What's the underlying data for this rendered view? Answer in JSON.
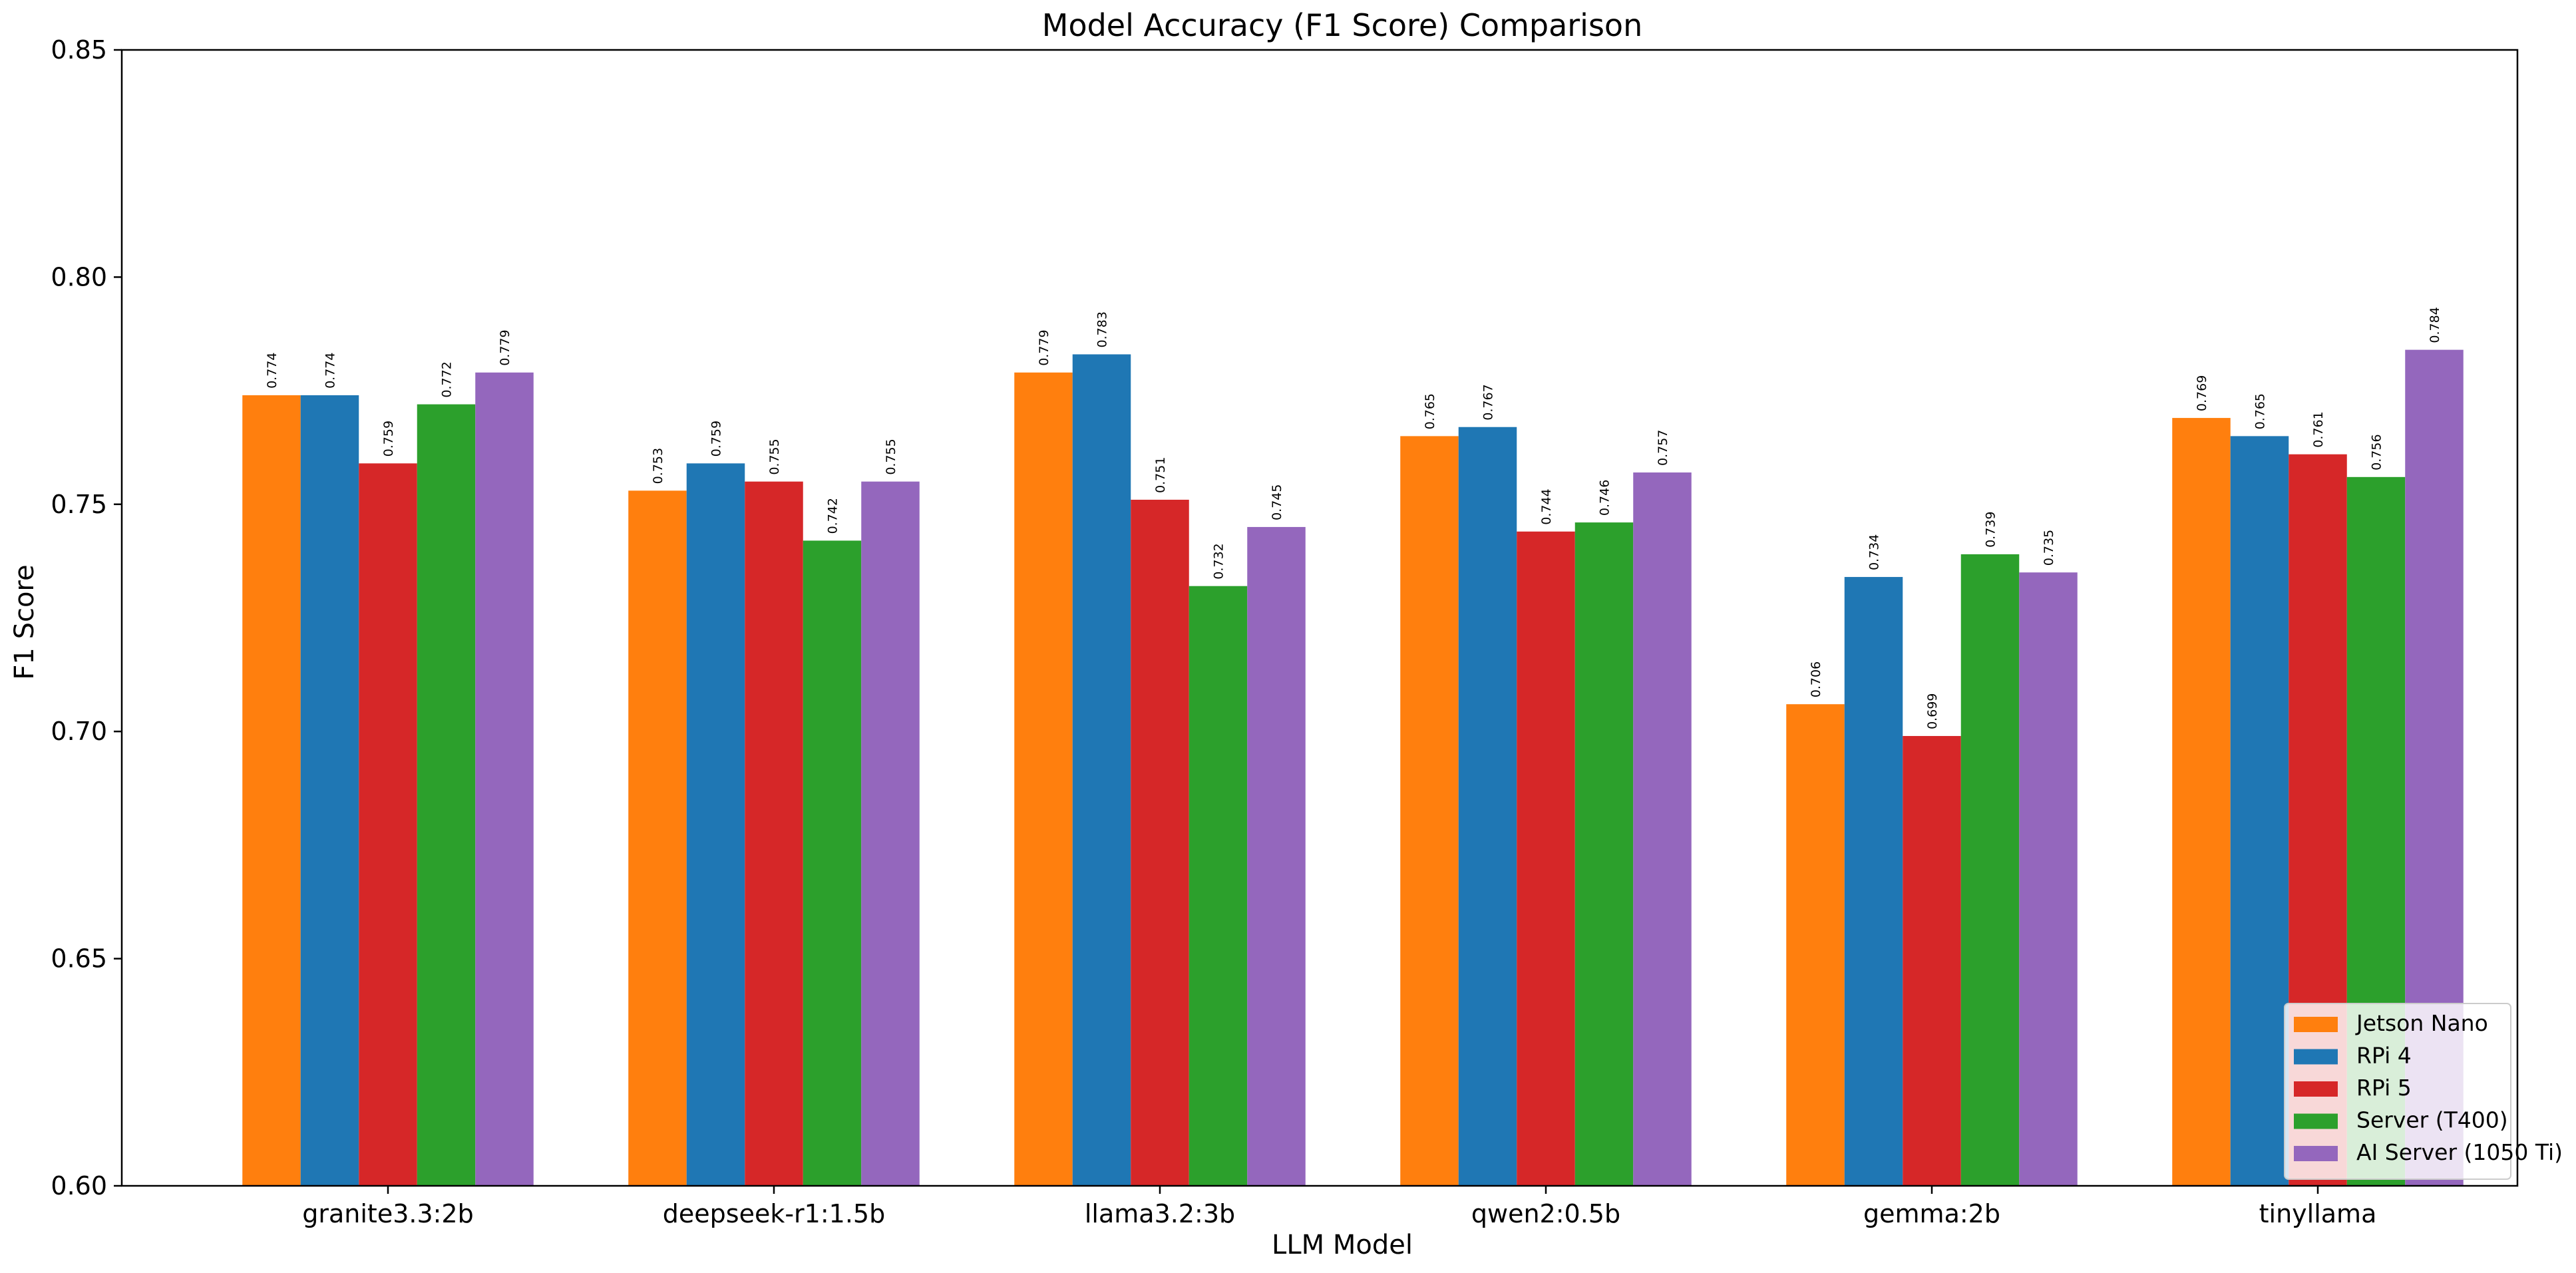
{
  "chart_data": {
    "type": "bar",
    "title": "Model Accuracy (F1 Score) Comparison",
    "xlabel": "LLM Model",
    "ylabel": "F1 Score",
    "ylim": [
      0.6,
      0.85
    ],
    "yticks": [
      0.6,
      0.65,
      0.7,
      0.75,
      0.8,
      0.85
    ],
    "ytick_labels": [
      "0.60",
      "0.65",
      "0.70",
      "0.75",
      "0.80",
      "0.85"
    ],
    "categories": [
      "granite3.3:2b",
      "deepseek-r1:1.5b",
      "llama3.2:3b",
      "qwen2:0.5b",
      "gemma:2b",
      "tinyllama"
    ],
    "series": [
      {
        "name": "Jetson Nano",
        "color": "#ff7f0e",
        "values": [
          0.774,
          0.753,
          0.779,
          0.765,
          0.706,
          0.769
        ]
      },
      {
        "name": "RPi 4",
        "color": "#1f77b4",
        "values": [
          0.774,
          0.759,
          0.783,
          0.767,
          0.734,
          0.765
        ]
      },
      {
        "name": "RPi 5",
        "color": "#d62728",
        "values": [
          0.759,
          0.755,
          0.751,
          0.744,
          0.699,
          0.761
        ]
      },
      {
        "name": "Server (T400)",
        "color": "#2ca02c",
        "values": [
          0.772,
          0.742,
          0.732,
          0.746,
          0.739,
          0.756
        ]
      },
      {
        "name": "AI Server (1050 Ti)",
        "color": "#9467bd",
        "values": [
          0.779,
          0.755,
          0.745,
          0.757,
          0.735,
          0.784
        ]
      }
    ],
    "grid": false,
    "legend_position": "lower-right"
  }
}
